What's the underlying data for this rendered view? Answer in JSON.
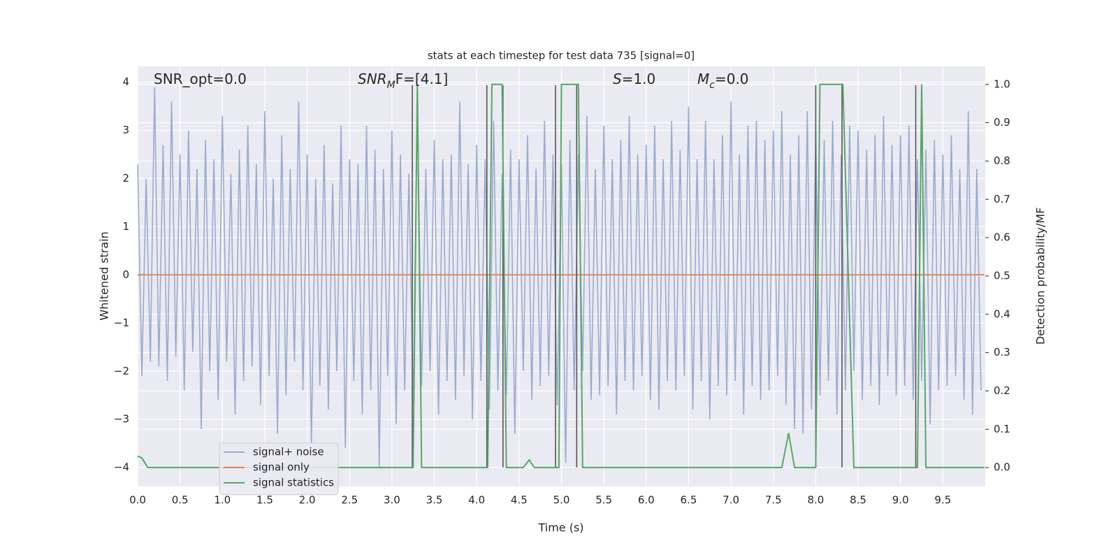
{
  "chart_data": {
    "type": "line",
    "title": "stats at each timestep for test data 735 [signal=0]",
    "xlabel": "Time (s)",
    "ylabel": "Whitened strain",
    "y2label": "Detection probability/MF",
    "xlim": [
      0,
      10
    ],
    "ylim": [
      -4.39,
      4.33
    ],
    "y2lim": [
      -0.049,
      1.047
    ],
    "xticks": [
      {
        "value": 0,
        "label": "0.0"
      },
      0.5,
      {
        "value": 1,
        "label": "1.0"
      },
      1.5,
      {
        "value": 2,
        "label": "2.0"
      },
      2.5,
      {
        "value": 3,
        "label": "3.0"
      },
      3.5,
      {
        "value": 4,
        "label": "4.0"
      },
      4.5,
      {
        "value": 5,
        "label": "5.0"
      },
      5.5,
      {
        "value": 6,
        "label": "6.0"
      },
      6.5,
      {
        "value": 7,
        "label": "7.0"
      },
      7.5,
      {
        "value": 8,
        "label": "8.0"
      },
      8.5,
      {
        "value": 9,
        "label": "9.0"
      },
      9.5
    ],
    "yticks": [
      {
        "value": -4,
        "label": "−4"
      },
      {
        "value": -3,
        "label": "−3"
      },
      {
        "value": -2,
        "label": "−2"
      },
      {
        "value": -1,
        "label": "−1"
      },
      0,
      1,
      2,
      3,
      4
    ],
    "y2ticks": [
      {
        "value": 0,
        "label": "0.0"
      },
      0.1,
      0.2,
      0.3,
      0.4,
      0.5,
      0.6,
      0.7,
      0.8,
      0.9,
      {
        "value": 1,
        "label": "1.0"
      }
    ],
    "grid": true,
    "legend": "lower left",
    "annotations": [
      {
        "parts": [
          {
            "text": "SNR_opt=0.0"
          }
        ]
      },
      {
        "parts": [
          {
            "text": "SNR",
            "italic": true
          },
          {
            "text": "M",
            "italic": true,
            "sub": true
          },
          {
            "text": "F=[4.1]"
          }
        ]
      },
      {
        "parts": [
          {
            "text": "S",
            "italic": true
          },
          {
            "text": "=1.0"
          }
        ]
      },
      {
        "parts": [
          {
            "text": "M",
            "italic": true
          },
          {
            "text": "c",
            "italic": true,
            "sub": true
          },
          {
            "text": "=0.0"
          }
        ]
      }
    ],
    "series": [
      {
        "name": "signal+ noise",
        "color": "#9aabd0",
        "x": [
          0,
          0.05,
          0.1,
          0.15,
          0.2,
          0.25,
          0.3,
          0.35,
          0.4,
          0.45,
          0.5,
          0.55,
          0.6,
          0.65,
          0.7,
          0.75,
          0.8,
          0.85,
          0.9,
          0.95,
          1,
          1.05,
          1.1,
          1.15,
          1.2,
          1.25,
          1.3,
          1.35,
          1.4,
          1.45,
          1.5,
          1.55,
          1.6,
          1.65,
          1.7,
          1.75,
          1.8,
          1.85,
          1.9,
          1.95,
          2,
          2.05,
          2.1,
          2.15,
          2.2,
          2.25,
          2.3,
          2.35,
          2.4,
          2.45,
          2.5,
          2.55,
          2.6,
          2.65,
          2.7,
          2.75,
          2.8,
          2.85,
          2.9,
          2.95,
          3,
          3.05,
          3.1,
          3.15,
          3.2,
          3.25,
          3.3,
          3.35,
          3.4,
          3.45,
          3.5,
          3.55,
          3.6,
          3.65,
          3.7,
          3.75,
          3.8,
          3.85,
          3.9,
          3.95,
          4,
          4.05,
          4.1,
          4.15,
          4.2,
          4.25,
          4.3,
          4.35,
          4.4,
          4.45,
          4.5,
          4.55,
          4.6,
          4.65,
          4.7,
          4.75,
          4.8,
          4.85,
          4.9,
          4.95,
          5,
          5.05,
          5.1,
          5.15,
          5.2,
          5.25,
          5.3,
          5.35,
          5.4,
          5.45,
          5.5,
          5.55,
          5.6,
          5.65,
          5.7,
          5.75,
          5.8,
          5.85,
          5.9,
          5.95,
          6,
          6.05,
          6.1,
          6.15,
          6.2,
          6.25,
          6.3,
          6.35,
          6.4,
          6.45,
          6.5,
          6.55,
          6.6,
          6.65,
          6.7,
          6.75,
          6.8,
          6.85,
          6.9,
          6.95,
          7,
          7.05,
          7.1,
          7.15,
          7.2,
          7.25,
          7.3,
          7.35,
          7.4,
          7.45,
          7.5,
          7.55,
          7.6,
          7.65,
          7.7,
          7.75,
          7.8,
          7.85,
          7.9,
          7.95,
          8,
          8.05,
          8.1,
          8.15,
          8.2,
          8.25,
          8.3,
          8.35,
          8.4,
          8.45,
          8.5,
          8.55,
          8.6,
          8.65,
          8.7,
          8.75,
          8.8,
          8.85,
          8.9,
          8.95,
          9,
          9.05,
          9.1,
          9.15,
          9.2,
          9.25,
          9.3,
          9.35,
          9.4,
          9.45,
          9.5,
          9.55,
          9.6,
          9.65,
          9.7,
          9.75,
          9.8,
          9.85,
          9.9,
          9.95
        ],
        "values": [
          2.3,
          -2.1,
          2.0,
          -1.8,
          3.9,
          -1.9,
          2.7,
          -2.2,
          3.6,
          -1.7,
          2.5,
          -2.4,
          3.0,
          -1.6,
          2.2,
          -3.2,
          2.8,
          -2.0,
          2.4,
          -2.6,
          3.3,
          -1.8,
          2.1,
          -2.9,
          2.6,
          -2.2,
          3.1,
          -1.9,
          2.3,
          -2.7,
          3.4,
          -2.1,
          2.0,
          -3.3,
          2.9,
          -2.5,
          2.2,
          -1.8,
          3.6,
          -2.4,
          2.5,
          -3.5,
          2.0,
          -2.3,
          2.7,
          -2.8,
          1.9,
          -2.0,
          3.1,
          -3.6,
          2.4,
          -2.2,
          2.3,
          -2.9,
          3.1,
          -2.4,
          2.6,
          -4.0,
          2.2,
          -2.1,
          3.0,
          -3.1,
          2.5,
          -2.4,
          2.1,
          -2.7,
          3.5,
          -2.3,
          2.2,
          -2.0,
          2.8,
          -2.9,
          2.4,
          -2.2,
          2.5,
          -2.6,
          3.6,
          -2.1,
          2.3,
          -3.0,
          2.7,
          -2.2,
          2.4,
          -2.8,
          3.2,
          -2.4,
          2.1,
          -2.5,
          2.6,
          -3.3,
          2.4,
          -2.0,
          2.9,
          -2.6,
          2.2,
          -2.3,
          3.2,
          -2.1,
          2.5,
          -2.7,
          2.3,
          -3.9,
          2.8,
          -2.4,
          2.5,
          -2.0,
          3.3,
          -2.6,
          2.2,
          -2.5,
          3.1,
          -2.3,
          2.4,
          -2.9,
          2.8,
          -2.2,
          3.3,
          -2.4,
          2.5,
          -2.1,
          2.7,
          -2.6,
          3.1,
          -2.8,
          2.4,
          -2.2,
          3.2,
          -2.4,
          2.6,
          -2.1,
          3.5,
          -2.8,
          2.4,
          -2.2,
          3.2,
          -3.0,
          2.4,
          -2.3,
          2.9,
          -2.5,
          3.6,
          -2.2,
          2.5,
          -2.9,
          3.1,
          -2.3,
          3.2,
          -2.6,
          2.8,
          -2.4,
          3.0,
          -2.1,
          3.4,
          -2.7,
          2.5,
          -3.2,
          2.9,
          -3.3,
          3.4,
          -2.8,
          3.0,
          -2.5,
          2.8,
          -2.2,
          3.2,
          -2.9,
          2.5,
          -2.4,
          3.1,
          -2.0,
          3.0,
          -2.6,
          2.6,
          -2.3,
          2.9,
          -2.7,
          3.3,
          -2.1,
          2.7,
          -2.5,
          2.9,
          -2.3,
          3.1,
          -2.6,
          2.4,
          -2.2,
          2.6,
          -3.1,
          2.8,
          -2.4,
          2.5,
          -2.3,
          2.9,
          -2.1,
          2.2,
          -2.6,
          3.4,
          -2.9,
          2.2,
          -2.4
        ]
      },
      {
        "name": "signal only",
        "color": "#dd8452",
        "x": [
          0,
          9.99
        ],
        "values": [
          0,
          0
        ]
      },
      {
        "name": "signal statistics",
        "color": "#55a868",
        "axis": "y2",
        "x": [
          0,
          0.05,
          0.12,
          0.2,
          3.25,
          3.3,
          3.35,
          4.13,
          4.18,
          4.3,
          4.35,
          4.55,
          4.62,
          4.68,
          4.97,
          5.0,
          5.2,
          5.25,
          7.6,
          7.68,
          7.75,
          8.0,
          8.05,
          8.32,
          8.45,
          9.2,
          9.25,
          9.3,
          9.99
        ],
        "values": [
          0.03,
          0.025,
          0,
          0,
          0,
          1,
          0,
          0,
          1,
          1,
          0,
          0,
          0.02,
          0,
          0,
          1,
          1,
          0,
          0,
          0.09,
          0,
          0,
          1,
          1,
          0,
          0,
          1,
          0,
          0
        ]
      }
    ],
    "vlines": {
      "color": "#555555",
      "x": [
        3.24,
        4.12,
        4.31,
        4.93,
        5.18,
        8.0,
        8.31,
        9.18
      ]
    }
  }
}
